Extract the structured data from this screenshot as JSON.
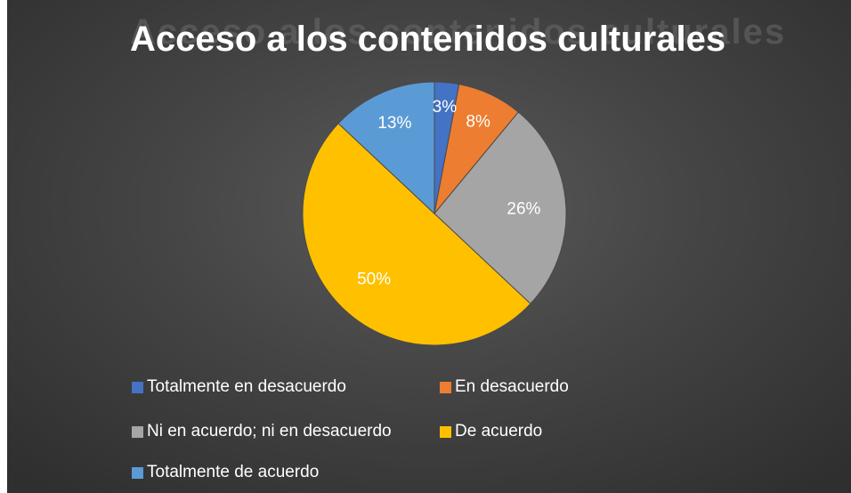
{
  "chart_data": {
    "type": "pie",
    "title": "Acceso a los contenidos culturales",
    "categories": [
      "Totalmente en desacuerdo",
      "En desacuerdo",
      "Ni en acuerdo; ni en desacuerdo",
      "De acuerdo",
      "Totalmente de acuerdo"
    ],
    "values": [
      3,
      8,
      26,
      50,
      13
    ],
    "data_labels": [
      "3%",
      "8%",
      "26%",
      "50%",
      "13%"
    ],
    "colors": [
      "#4472c4",
      "#ed7d31",
      "#a5a5a5",
      "#ffc000",
      "#5b9bd5"
    ],
    "legend_position": "bottom"
  }
}
